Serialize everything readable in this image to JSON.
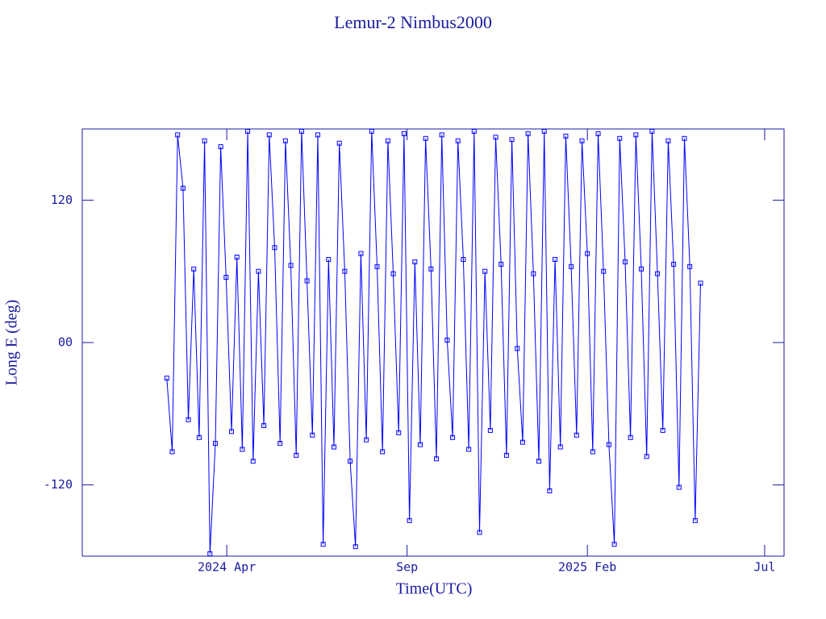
{
  "chart_data": {
    "type": "line",
    "title": "Lemur-2 Nimbus2000",
    "x_label": "Time(UTC)",
    "y_label": "Long E (deg)",
    "xlim": [
      2023.914,
      2025.541
    ],
    "xticks": [
      {
        "value": 2024.249,
        "label": "2024 Apr"
      },
      {
        "value": 2024.667,
        "label": "Sep"
      },
      {
        "value": 2025.085,
        "label": "2025 Feb"
      },
      {
        "value": 2025.496,
        "label": "Jul"
      }
    ],
    "ylim": [
      -180,
      180
    ],
    "yticks": [
      {
        "value": -120,
        "label": "-120"
      },
      {
        "value": 0,
        "label": "00"
      },
      {
        "value": 120,
        "label": "120"
      }
    ],
    "series": [
      {
        "color": "#0000ff",
        "x": [
          2024.11,
          2024.1225,
          2024.135,
          2024.1475,
          2024.16,
          2024.1725,
          2024.185,
          2024.1975,
          2024.21,
          2024.2225,
          2024.235,
          2024.2475,
          2024.26,
          2024.2725,
          2024.285,
          2024.2975,
          2024.31,
          2024.3225,
          2024.335,
          2024.3475,
          2024.36,
          2024.3725,
          2024.385,
          2024.3975,
          2024.41,
          2024.4225,
          2024.435,
          2024.4475,
          2024.46,
          2024.4725,
          2024.485,
          2024.4975,
          2024.51,
          2024.5225,
          2024.535,
          2024.5475,
          2024.56,
          2024.5725,
          2024.585,
          2024.5975,
          2024.61,
          2024.6225,
          2024.635,
          2024.6475,
          2024.66,
          2024.6725,
          2024.685,
          2024.6975,
          2024.71,
          2024.7225,
          2024.735,
          2024.7475,
          2024.76,
          2024.7725,
          2024.785,
          2024.7975,
          2024.81,
          2024.8225,
          2024.835,
          2024.8475,
          2024.86,
          2024.8725,
          2024.885,
          2024.8975,
          2024.91,
          2024.9225,
          2024.935,
          2024.9475,
          2024.96,
          2024.9725,
          2024.985,
          2024.9975,
          2025.01,
          2025.0225,
          2025.035,
          2025.0475,
          2025.06,
          2025.0725,
          2025.085,
          2025.0975,
          2025.11,
          2025.1225,
          2025.135,
          2025.1475,
          2025.16,
          2025.1725,
          2025.185,
          2025.1975,
          2025.21,
          2025.2225,
          2025.235,
          2025.2475,
          2025.26,
          2025.2725,
          2025.285,
          2025.2975,
          2025.31,
          2025.3225,
          2025.335,
          2025.3475
        ],
        "values": [
          -30,
          -92,
          175,
          130,
          -65,
          62,
          -80,
          170,
          -178,
          -85,
          165,
          55,
          -75,
          72,
          -90,
          178,
          -100,
          60,
          -70,
          175,
          80,
          -85,
          170,
          65,
          -95,
          178,
          52,
          -78,
          175,
          -170,
          70,
          -88,
          168,
          60,
          -100,
          -172,
          75,
          -82,
          178,
          64,
          -92,
          170,
          58,
          -76,
          176,
          -150,
          68,
          -86,
          172,
          62,
          -98,
          175,
          2,
          -80,
          170,
          70,
          -90,
          178,
          -160,
          60,
          -74,
          173,
          66,
          -95,
          171,
          -5,
          -84,
          176,
          58,
          -100,
          178,
          -125,
          70,
          -88,
          174,
          64,
          -78,
          170,
          75,
          -92,
          176,
          60,
          -86,
          -170,
          172,
          68,
          -80,
          175,
          62,
          -96,
          178,
          58,
          -74,
          170,
          66,
          -122,
          172,
          64,
          -150,
          50
        ]
      }
    ]
  }
}
